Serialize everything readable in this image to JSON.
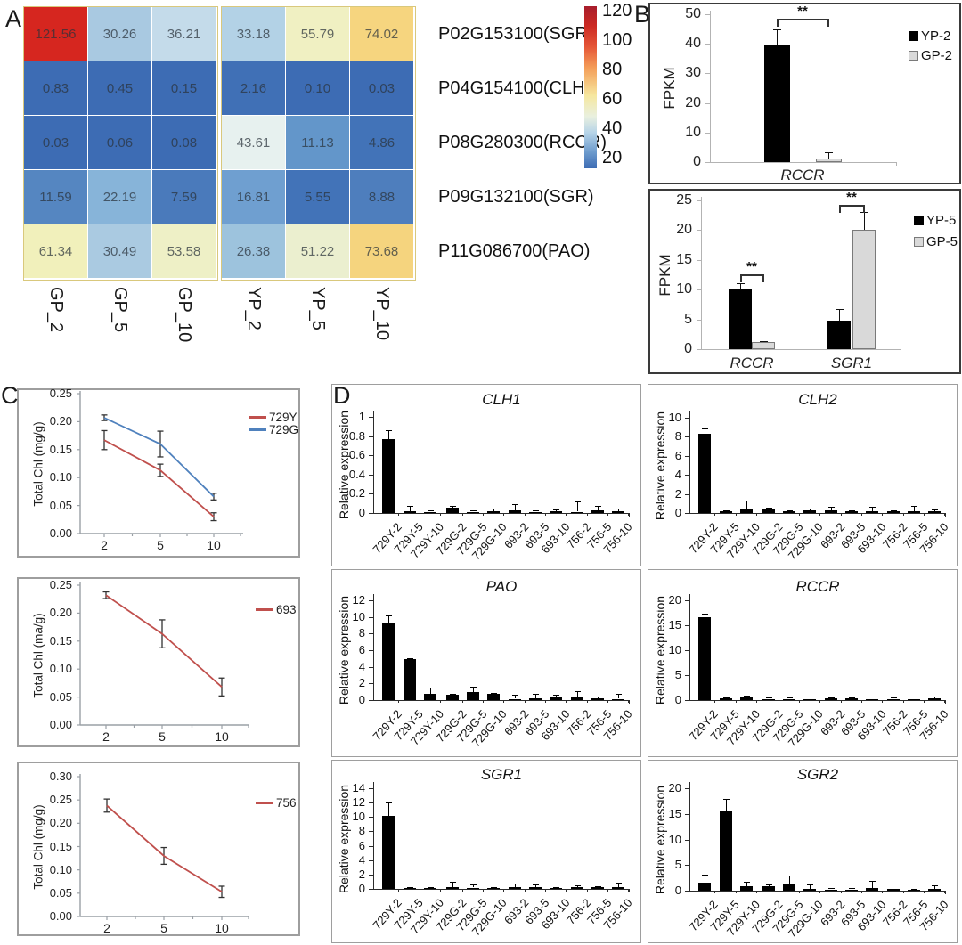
{
  "panels": {
    "a_label": "A",
    "b_label": "B",
    "c_label": "C",
    "d_label": "D"
  },
  "chart_data": [
    {
      "id": "heatmap",
      "type": "heatmap",
      "columns": [
        "GP_2",
        "GP_5",
        "GP_10",
        "YP_2",
        "YP_5",
        "YP_10"
      ],
      "row_labels": [
        "P02G153100(SGR)",
        "P04G154100(CLH)",
        "P08G280300(RCCR)",
        "P09G132100(SGR)",
        "P11G086700(PAO)"
      ],
      "values": [
        [
          "121.56",
          "30.26",
          "36.21",
          "33.18",
          "55.79",
          "74.02"
        ],
        [
          "0.83",
          "0.45",
          "0.15",
          "2.16",
          "0.10",
          "0.03"
        ],
        [
          "0.03",
          "0.06",
          "0.08",
          "43.61",
          "11.13",
          "4.86"
        ],
        [
          "11.59",
          "22.19",
          "7.59",
          "16.81",
          "5.55",
          "8.88"
        ],
        [
          "61.34",
          "30.49",
          "53.58",
          "26.38",
          "51.22",
          "73.68"
        ]
      ],
      "cell_colors": [
        [
          "#d6261f",
          "#a9c9e1",
          "#c4dbea",
          "#b3d2e6",
          "#f0f0c2",
          "#f6d57f"
        ],
        [
          "#3d6cb4",
          "#3d6cb4",
          "#3d6cb4",
          "#4070b6",
          "#3d6cb4",
          "#3d6cb4"
        ],
        [
          "#3d6cb4",
          "#3d6cb4",
          "#3d6cb4",
          "#e7f1ef",
          "#6396ca",
          "#4273b8"
        ],
        [
          "#5586c1",
          "#87b4d9",
          "#4a7abb",
          "#6f9fd0",
          "#4273b8",
          "#4e7ebd"
        ],
        [
          "#f1f0bb",
          "#aacae1",
          "#eef0c6",
          "#9dc3dd",
          "#ebefcf",
          "#f5d47e"
        ]
      ],
      "colorbar": {
        "ticks": [
          "120",
          "100",
          "80",
          "60",
          "40",
          "20"
        ],
        "gradient": [
          "#a71d2c 0%",
          "#cc2a23 12%",
          "#e55637 25%",
          "#f49d58 38%",
          "#f6e79e 55%",
          "#e9f0df 68%",
          "#b6d4e8 78%",
          "#6d9bcd 90%",
          "#3d6cb4 100%"
        ]
      }
    },
    {
      "id": "b1",
      "type": "bar",
      "ylabel": "FPKM",
      "ylim": [
        0,
        50
      ],
      "yticks": [
        "0",
        "10",
        "20",
        "30",
        "40",
        "50"
      ],
      "categories": [
        "RCCR"
      ],
      "series": [
        {
          "name": "YP-2",
          "color": "#000000",
          "values": [
            39.5
          ],
          "errors": [
            5.5
          ]
        },
        {
          "name": "GP-2",
          "color": "#d9d9d9",
          "values": [
            1.2
          ],
          "errors": [
            2.0
          ]
        }
      ],
      "significance": [
        {
          "group": "RCCR",
          "label": "**"
        }
      ],
      "legend_position": "top-right"
    },
    {
      "id": "b2",
      "type": "bar",
      "ylabel": "FPKM",
      "ylim": [
        0,
        25
      ],
      "yticks": [
        "0",
        "5",
        "10",
        "15",
        "20",
        "25"
      ],
      "categories": [
        "RCCR",
        "SGR1"
      ],
      "series": [
        {
          "name": "YP-5",
          "color": "#000000",
          "values": [
            10.1,
            4.8
          ],
          "errors": [
            1.0,
            1.9
          ]
        },
        {
          "name": "GP-5",
          "color": "#d9d9d9",
          "values": [
            1.2,
            20.0
          ],
          "errors": [
            0.2,
            3.1
          ]
        }
      ],
      "significance": [
        {
          "group": "RCCR",
          "label": "**"
        },
        {
          "group": "SGR1",
          "label": "**"
        }
      ],
      "legend_position": "top-right"
    },
    {
      "id": "c1",
      "type": "line",
      "ylabel": "Total Chl (mg/g)",
      "ylim": [
        0,
        0.25
      ],
      "yticks": [
        "0.00",
        "0.05",
        "0.10",
        "0.15",
        "0.20",
        "0.25"
      ],
      "x": [
        "2",
        "5",
        "10"
      ],
      "series": [
        {
          "name": "729Y",
          "color": "#c0504d",
          "values": [
            0.167,
            0.113,
            0.03
          ],
          "errors": [
            0.017,
            0.011,
            0.007
          ]
        },
        {
          "name": "729G",
          "color": "#4f81bd",
          "values": [
            0.207,
            0.16,
            0.066
          ],
          "errors": [
            0.005,
            0.023,
            0.006
          ]
        }
      ],
      "legend_position": "top-right"
    },
    {
      "id": "c2",
      "type": "line",
      "ylabel": "Total Chl (ma/g)",
      "ylim": [
        0,
        0.25
      ],
      "yticks": [
        "0.00",
        "0.05",
        "0.10",
        "0.15",
        "0.20",
        "0.25"
      ],
      "x": [
        "2",
        "5",
        "10"
      ],
      "series": [
        {
          "name": "693",
          "color": "#c0504d",
          "values": [
            0.232,
            0.163,
            0.068
          ],
          "errors": [
            0.006,
            0.025,
            0.016
          ]
        }
      ],
      "legend_position": "top-right"
    },
    {
      "id": "c3",
      "type": "line",
      "ylabel": "Total Chl (mg/g)",
      "ylim": [
        0,
        0.3
      ],
      "yticks": [
        "0.00",
        "0.05",
        "0.10",
        "0.15",
        "0.20",
        "0.25",
        "0.30"
      ],
      "x": [
        "2",
        "5",
        "10"
      ],
      "series": [
        {
          "name": "756",
          "color": "#c0504d",
          "values": [
            0.238,
            0.13,
            0.053
          ],
          "errors": [
            0.014,
            0.018,
            0.012
          ]
        }
      ],
      "legend_position": "top-right"
    },
    {
      "id": "d1",
      "type": "bar",
      "title": "CLH1",
      "ylabel": "Relative expression",
      "ylim": [
        0,
        1
      ],
      "yticks": [
        "0",
        "0.2",
        "0.4",
        "0.6",
        "0.8",
        "1"
      ],
      "categories": [
        "729Y-2",
        "729Y-5",
        "729Y-10",
        "729G-2",
        "729G-5",
        "729G-10",
        "693-2",
        "693-5",
        "693-10",
        "756-2",
        "756-5",
        "756-10"
      ],
      "values": [
        0.77,
        0.015,
        0.012,
        0.055,
        0.012,
        0.02,
        0.025,
        0.012,
        0.015,
        0.012,
        0.025,
        0.02
      ],
      "errors": [
        0.09,
        0.055,
        0.02,
        0.02,
        0.018,
        0.025,
        0.065,
        0.015,
        0.02,
        0.11,
        0.05,
        0.03
      ]
    },
    {
      "id": "d2",
      "type": "bar",
      "title": "CLH2",
      "ylabel": "Relative expression",
      "ylim": [
        0,
        10
      ],
      "yticks": [
        "0",
        "2",
        "4",
        "6",
        "8",
        "10"
      ],
      "categories": [
        "729Y-2",
        "729Y-5",
        "729Y-10",
        "729G-2",
        "729G-5",
        "729G-10",
        "693-2",
        "693-5",
        "693-10",
        "756-2",
        "756-5",
        "756-10"
      ],
      "values": [
        8.3,
        0.2,
        0.5,
        0.4,
        0.15,
        0.3,
        0.25,
        0.2,
        0.15,
        0.2,
        0.2,
        0.2
      ],
      "errors": [
        0.55,
        0.12,
        0.85,
        0.15,
        0.1,
        0.2,
        0.45,
        0.12,
        0.55,
        0.1,
        0.55,
        0.2
      ]
    },
    {
      "id": "d3",
      "type": "bar",
      "title": "PAO",
      "ylabel": "Relative expression",
      "ylim": [
        0,
        12
      ],
      "yticks": [
        "0",
        "2",
        "4",
        "6",
        "8",
        "10",
        "12"
      ],
      "categories": [
        "729Y-2",
        "729Y-5",
        "729Y-10",
        "729G-2",
        "729G-5",
        "729G-10",
        "693-2",
        "693-5",
        "693-10",
        "756-2",
        "756-5",
        "756-10"
      ],
      "values": [
        9.2,
        4.9,
        0.7,
        0.6,
        1.0,
        0.7,
        0.15,
        0.25,
        0.45,
        0.3,
        0.2,
        0.15
      ],
      "errors": [
        1.0,
        0.15,
        0.8,
        0.12,
        0.65,
        0.12,
        0.45,
        0.45,
        0.15,
        0.75,
        0.2,
        0.55
      ]
    },
    {
      "id": "d4",
      "type": "bar",
      "title": "RCCR",
      "ylabel": "Relative expression",
      "ylim": [
        0,
        20
      ],
      "yticks": [
        "0",
        "5",
        "10",
        "15",
        "20"
      ],
      "categories": [
        "729Y-2",
        "729Y-5",
        "729Y-10",
        "729G-2",
        "729G-5",
        "729G-10",
        "693-2",
        "693-5",
        "693-10",
        "756-2",
        "756-5",
        "756-10"
      ],
      "values": [
        16.6,
        0.4,
        0.45,
        0.2,
        0.25,
        0.12,
        0.4,
        0.35,
        0.12,
        0.2,
        0.15,
        0.3
      ],
      "errors": [
        0.8,
        0.15,
        0.5,
        0.3,
        0.2,
        0.1,
        0.15,
        0.15,
        0.1,
        0.35,
        0.1,
        0.35
      ]
    },
    {
      "id": "d5",
      "type": "bar",
      "title": "SGR1",
      "ylabel": "Relative expression",
      "ylim": [
        0,
        14
      ],
      "yticks": [
        "0",
        "2",
        "4",
        "6",
        "8",
        "10",
        "12",
        "14"
      ],
      "categories": [
        "729Y-2",
        "729Y-5",
        "729Y-10",
        "729G-2",
        "729G-5",
        "729G-10",
        "693-2",
        "693-5",
        "693-10",
        "756-2",
        "756-5",
        "756-10"
      ],
      "values": [
        10.1,
        0.15,
        0.15,
        0.3,
        0.15,
        0.12,
        0.2,
        0.2,
        0.15,
        0.2,
        0.2,
        0.3
      ],
      "errors": [
        1.9,
        0.1,
        0.1,
        0.75,
        0.5,
        0.1,
        0.5,
        0.4,
        0.1,
        0.3,
        0.15,
        0.6
      ]
    },
    {
      "id": "d6",
      "type": "bar",
      "title": "SGR2",
      "ylabel": "Relative expression",
      "ylim": [
        0,
        20
      ],
      "yticks": [
        "0",
        "5",
        "10",
        "15",
        "20"
      ],
      "categories": [
        "729Y-2",
        "729Y-5",
        "729Y-10",
        "729G-2",
        "729G-5",
        "729G-10",
        "693-2",
        "693-5",
        "693-10",
        "756-2",
        "756-5",
        "756-10"
      ],
      "values": [
        1.5,
        15.7,
        0.8,
        0.8,
        1.4,
        0.4,
        0.25,
        0.25,
        0.5,
        0.3,
        0.25,
        0.4
      ],
      "errors": [
        1.7,
        2.2,
        0.9,
        0.5,
        1.6,
        0.9,
        0.35,
        0.3,
        1.4,
        0.12,
        0.12,
        0.6
      ]
    }
  ]
}
